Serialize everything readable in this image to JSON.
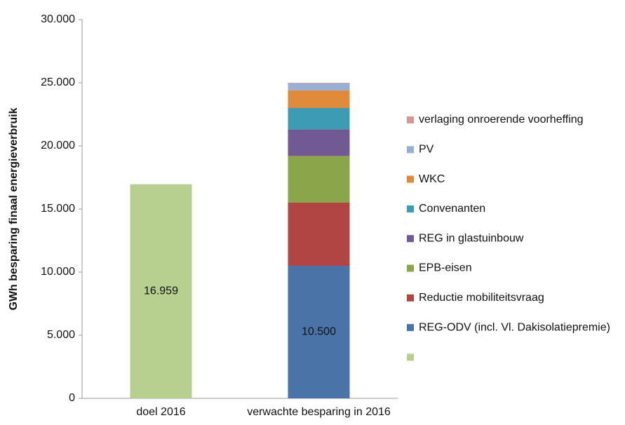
{
  "chart_data": {
    "type": "stacked_bar",
    "y_label": "GWh besparing finaal energieverbruik",
    "categories": [
      "doel 2016",
      "verwachte besparing in 2016"
    ],
    "ylim": [
      0,
      30000
    ],
    "yticks": [
      0,
      {
        "value": 5000,
        "label": "5.000"
      },
      {
        "value": 10000,
        "label": "10.000"
      },
      {
        "value": 15000,
        "label": "15.000"
      },
      {
        "value": 20000,
        "label": "20.000"
      },
      {
        "value": 25000,
        "label": "25.000"
      },
      {
        "value": 30000,
        "label": "30.000"
      }
    ],
    "grid": false,
    "legend": "right",
    "series": [
      {
        "color": "#b7cf8f",
        "values": [
          16959,
          null
        ],
        "value_labels": [
          "16.959",
          null
        ]
      },
      {
        "name": "REG-ODV (incl. Vl. Dakisolatiepremie)",
        "color": "#4a73a8",
        "values": [
          null,
          10500
        ],
        "value_labels": [
          null,
          "10.500"
        ]
      },
      {
        "name": "Reductie mobiliteitsvraag",
        "color": "#b04543",
        "values": [
          null,
          5000
        ]
      },
      {
        "name": "EPB-eisen",
        "color": "#8ba54a",
        "values": [
          null,
          3700
        ]
      },
      {
        "name": "REG in glastuinbouw",
        "color": "#715a94",
        "values": [
          null,
          2100
        ]
      },
      {
        "name": "Convenanten",
        "color": "#3d9bb3",
        "values": [
          null,
          1700
        ]
      },
      {
        "name": "WKC",
        "color": "#e08a3b",
        "values": [
          null,
          1400
        ]
      },
      {
        "name": "PV",
        "color": "#99b0d6",
        "values": [
          null,
          550
        ]
      },
      {
        "name": "verlaging onroerende voorheffing",
        "color": "#d99694",
        "values": [
          null,
          50
        ]
      }
    ]
  }
}
